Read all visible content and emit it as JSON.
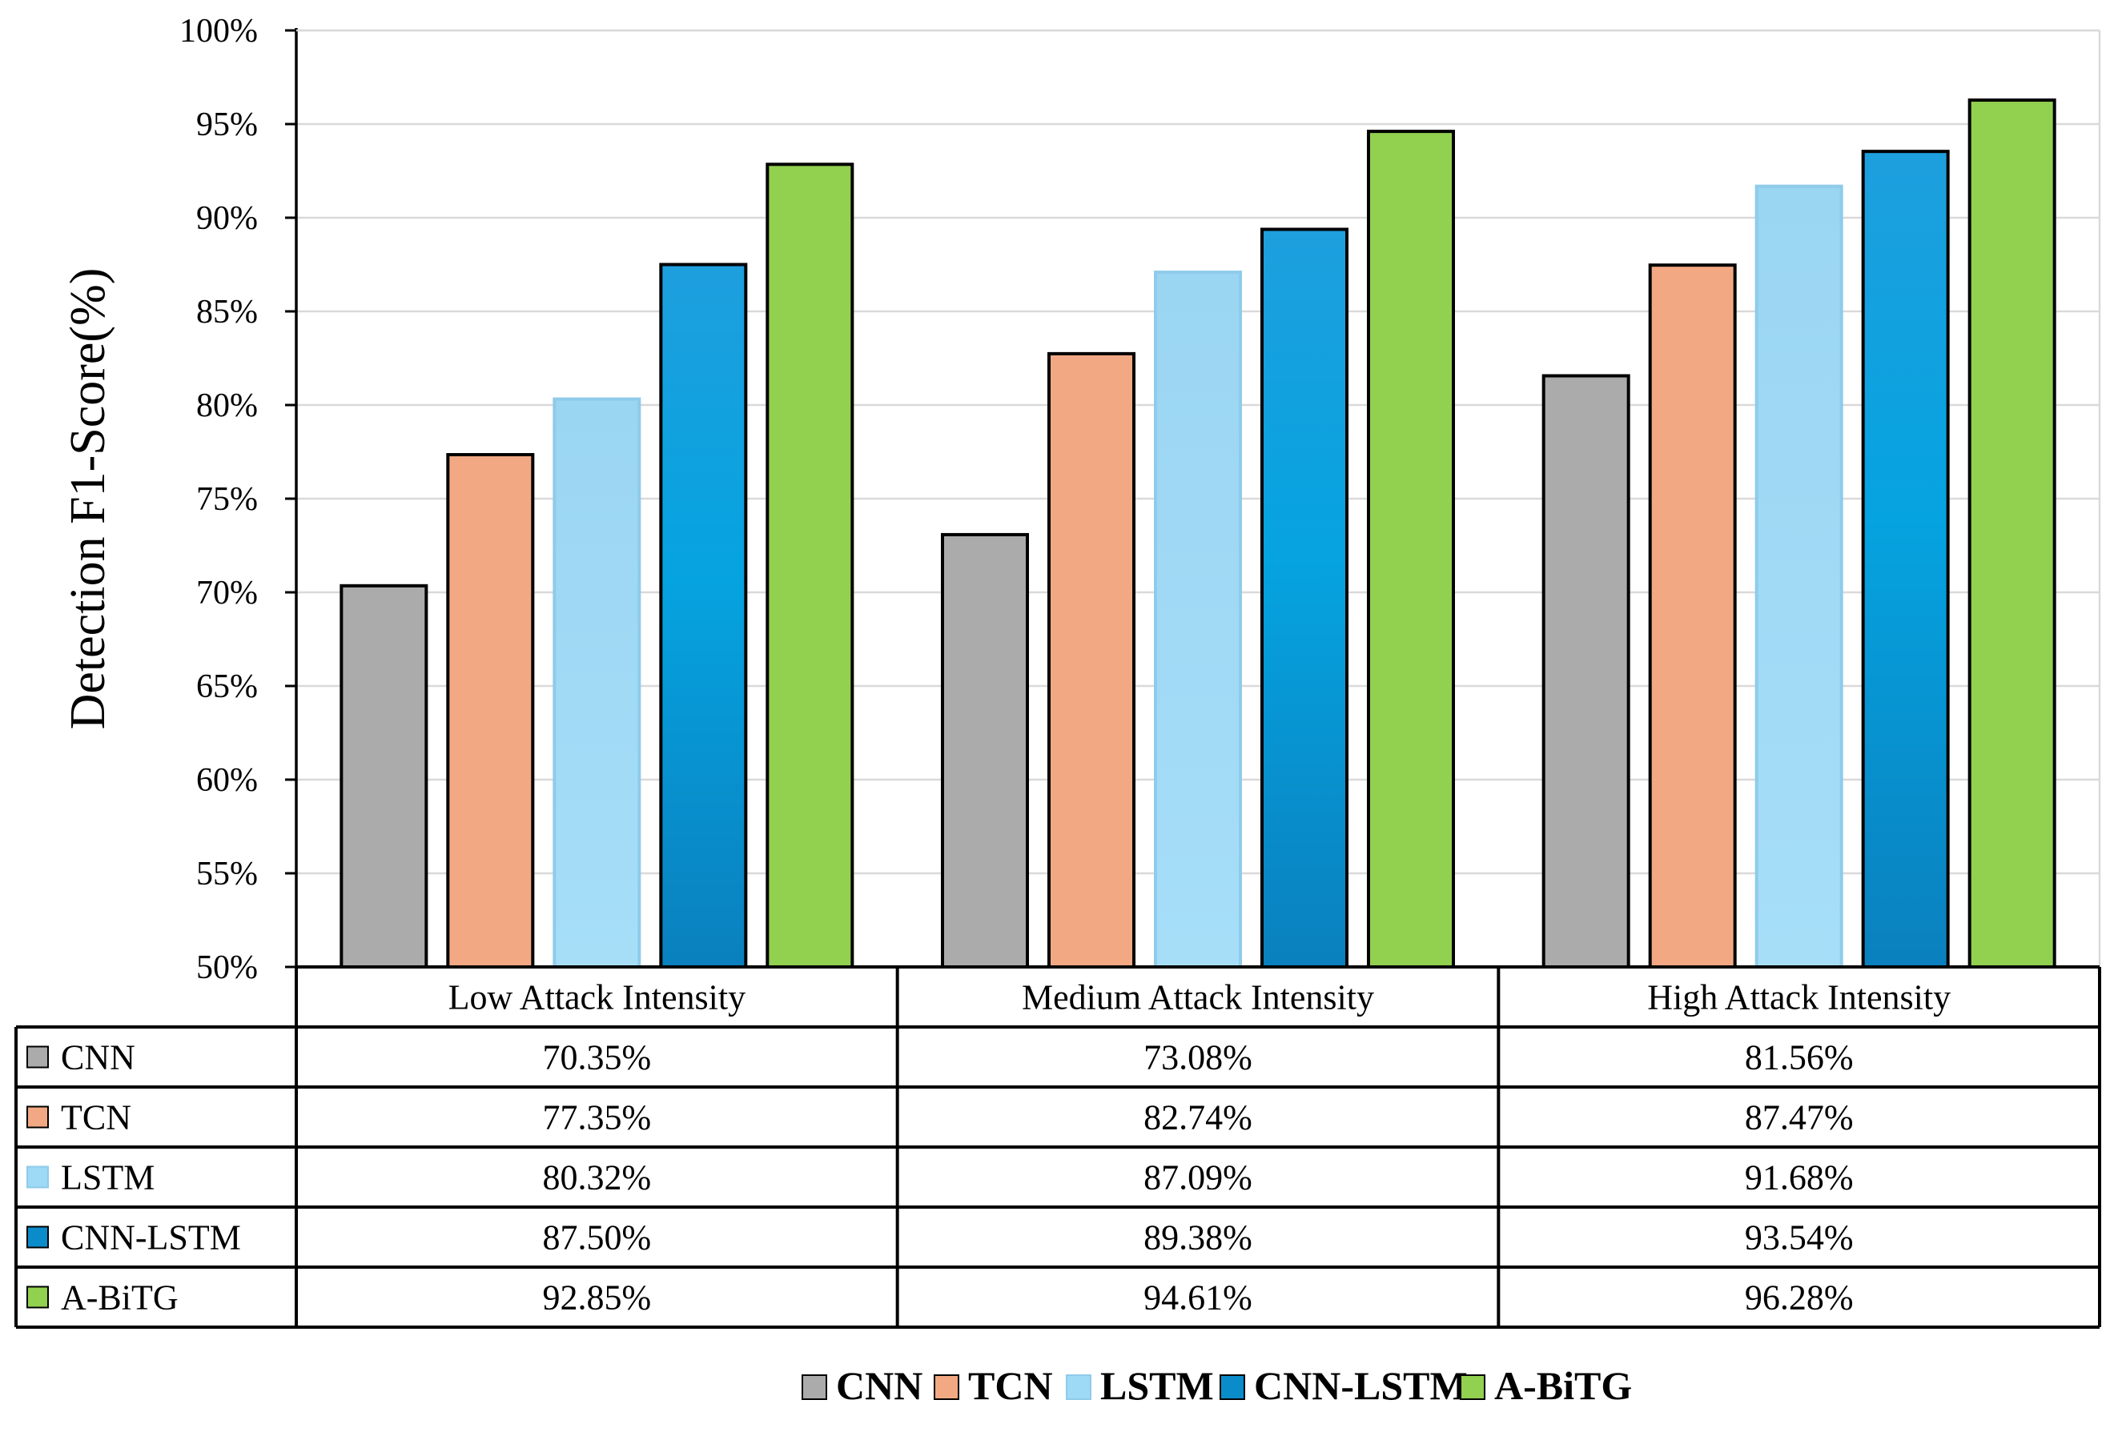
{
  "chart_data": {
    "type": "bar",
    "ylabel": "Detection F1-Score(%)",
    "ylim": [
      50,
      100
    ],
    "ytick_step": 5,
    "y_ticks": [
      "50%",
      "55%",
      "60%",
      "65%",
      "70%",
      "75%",
      "80%",
      "85%",
      "90%",
      "95%",
      "100%"
    ],
    "categories": [
      "Low Attack Intensity",
      "Medium Attack Intensity",
      "High Attack Intensity"
    ],
    "grid": true,
    "legend_position": "bottom-center",
    "data_table": true,
    "series": [
      {
        "name": "CNN",
        "values": [
          70.35,
          73.08,
          81.56
        ],
        "labels": [
          "70.35%",
          "73.08%",
          "81.56%"
        ],
        "color": "#ABABAB",
        "style": "solid"
      },
      {
        "name": "TCN",
        "values": [
          77.35,
          82.74,
          87.47
        ],
        "labels": [
          "77.35%",
          "82.74%",
          "87.47%"
        ],
        "color": "#F2A983",
        "style": "solid"
      },
      {
        "name": "LSTM",
        "values": [
          80.32,
          87.09,
          91.68
        ],
        "labels": [
          "80.32%",
          "87.09%",
          "91.68%"
        ],
        "color": "#9ED9F5",
        "style": "solid"
      },
      {
        "name": "CNN-LSTM",
        "values": [
          87.5,
          89.38,
          93.54
        ],
        "labels": [
          "87.50%",
          "89.38%",
          "93.54%"
        ],
        "color": "#0E8ECB",
        "style": "gradient"
      },
      {
        "name": "A-BiTG",
        "values": [
          92.85,
          94.61,
          96.28
        ],
        "labels": [
          "92.85%",
          "94.61%",
          "96.28%"
        ],
        "color": "#92D050",
        "style": "solid"
      }
    ]
  }
}
